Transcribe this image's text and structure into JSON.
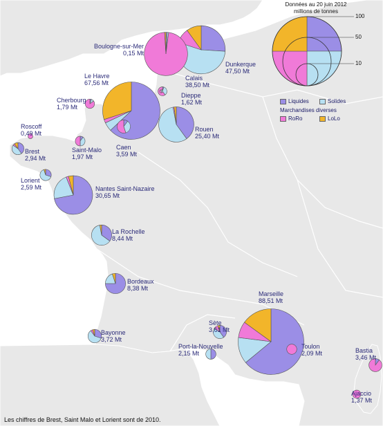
{
  "legend": {
    "title_line1": "Données au 20 juin 2012",
    "title_line2": "millions de tonnes",
    "scale": [
      "100",
      "50",
      "10"
    ],
    "liquides": "Liquides",
    "solides": "Solides",
    "marchandises": "Marchandises diverses",
    "roro": "RoRo",
    "lolo": "LoLo"
  },
  "colors": {
    "liquides": "#9b8ee6",
    "solides": "#b7e0f2",
    "roro": "#f07ad8",
    "lolo": "#f2b52a",
    "land": "#e8e8e8",
    "sea": "#ffffff",
    "label": "#2a2a78"
  },
  "ports": [
    {
      "name": "Boulogne-sur-Mer",
      "value": "0,15 Mt",
      "total": 0.15,
      "shares": {
        "liquides": 0,
        "solides": 0.4,
        "roro": 0.6,
        "lolo": 0
      }
    },
    {
      "name": "Calais",
      "value": "38,50 Mt",
      "total": 38.5,
      "shares": {
        "liquides": 0.01,
        "solides": 0.01,
        "roro": 0.97,
        "lolo": 0.01
      }
    },
    {
      "name": "Dunkerque",
      "value": "47,50 Mt",
      "total": 47.5,
      "shares": {
        "liquides": 0.26,
        "solides": 0.54,
        "roro": 0.1,
        "lolo": 0.1
      }
    },
    {
      "name": "Le Havre",
      "value": "67,56 Mt",
      "total": 67.56,
      "shares": {
        "liquides": 0.63,
        "solides": 0.05,
        "roro": 0.02,
        "lolo": 0.3
      }
    },
    {
      "name": "Dieppe",
      "value": "1,62 Mt",
      "total": 1.62,
      "shares": {
        "liquides": 0.05,
        "solides": 0.35,
        "roro": 0.6,
        "lolo": 0
      }
    },
    {
      "name": "Cherbourg",
      "value": "1,79 Mt",
      "total": 1.79,
      "shares": {
        "liquides": 0.05,
        "solides": 0.1,
        "roro": 0.85,
        "lolo": 0
      }
    },
    {
      "name": "Rouen",
      "value": "25,40 Mt",
      "total": 25.4,
      "shares": {
        "liquides": 0.4,
        "solides": 0.57,
        "roro": 0.01,
        "lolo": 0.02
      }
    },
    {
      "name": "Caen",
      "value": "3,59 Mt",
      "total": 3.59,
      "shares": {
        "liquides": 0.1,
        "solides": 0.35,
        "roro": 0.55,
        "lolo": 0
      }
    },
    {
      "name": "Roscoff",
      "value": "0,49 Mt",
      "total": 0.49,
      "shares": {
        "liquides": 0,
        "solides": 0,
        "roro": 1.0,
        "lolo": 0
      }
    },
    {
      "name": "Brest",
      "value": "2,94 Mt",
      "total": 2.94,
      "shares": {
        "liquides": 0.4,
        "solides": 0.45,
        "roro": 0.05,
        "lolo": 0.1
      }
    },
    {
      "name": "Saint-Malo",
      "value": "1,97 Mt",
      "total": 1.97,
      "shares": {
        "liquides": 0.1,
        "solides": 0.4,
        "roro": 0.5,
        "lolo": 0
      }
    },
    {
      "name": "Lorient",
      "value": "2,59 Mt",
      "total": 2.59,
      "shares": {
        "liquides": 0.3,
        "solides": 0.65,
        "roro": 0,
        "lolo": 0.05
      }
    },
    {
      "name": "Nantes Saint-Nazaire",
      "value": "30,65 Mt",
      "total": 30.65,
      "shares": {
        "liquides": 0.72,
        "solides": 0.22,
        "roro": 0.02,
        "lolo": 0.04
      }
    },
    {
      "name": "La Rochelle",
      "value": "8,44 Mt",
      "total": 8.44,
      "shares": {
        "liquides": 0.35,
        "solides": 0.62,
        "roro": 0,
        "lolo": 0.03
      }
    },
    {
      "name": "Bordeaux",
      "value": "8,38 Mt",
      "total": 8.38,
      "shares": {
        "liquides": 0.75,
        "solides": 0.2,
        "roro": 0,
        "lolo": 0.05
      }
    },
    {
      "name": "Bayonne",
      "value": "3,72 Mt",
      "total": 3.72,
      "shares": {
        "liquides": 0.3,
        "solides": 0.6,
        "roro": 0.05,
        "lolo": 0.05
      }
    },
    {
      "name": "Marseille",
      "value": "88,51 Mt",
      "total": 88.51,
      "shares": {
        "liquides": 0.64,
        "solides": 0.13,
        "roro": 0.08,
        "lolo": 0.15
      }
    },
    {
      "name": "Sète",
      "value": "3,61 Mt",
      "total": 3.61,
      "shares": {
        "liquides": 0.4,
        "solides": 0.45,
        "roro": 0.1,
        "lolo": 0.05
      }
    },
    {
      "name": "Port-la-Nouvelle",
      "value": "2,15 Mt",
      "total": 2.15,
      "shares": {
        "liquides": 0.5,
        "solides": 0.5,
        "roro": 0,
        "lolo": 0
      }
    },
    {
      "name": "Toulon",
      "value": "2,09 Mt",
      "total": 2.09,
      "shares": {
        "liquides": 0,
        "solides": 0,
        "roro": 1.0,
        "lolo": 0
      }
    },
    {
      "name": "Bastia",
      "value": "3,46 Mt",
      "total": 3.46,
      "shares": {
        "liquides": 0.1,
        "solides": 0,
        "roro": 0.9,
        "lolo": 0
      }
    },
    {
      "name": "Ajaccio",
      "value": "1,37 Mt",
      "total": 1.37,
      "shares": {
        "liquides": 0,
        "solides": 0,
        "roro": 1.0,
        "lolo": 0
      }
    }
  ],
  "footnote": "Les chiffres de Brest, Saint Malo et Lorient sont de 2010."
}
